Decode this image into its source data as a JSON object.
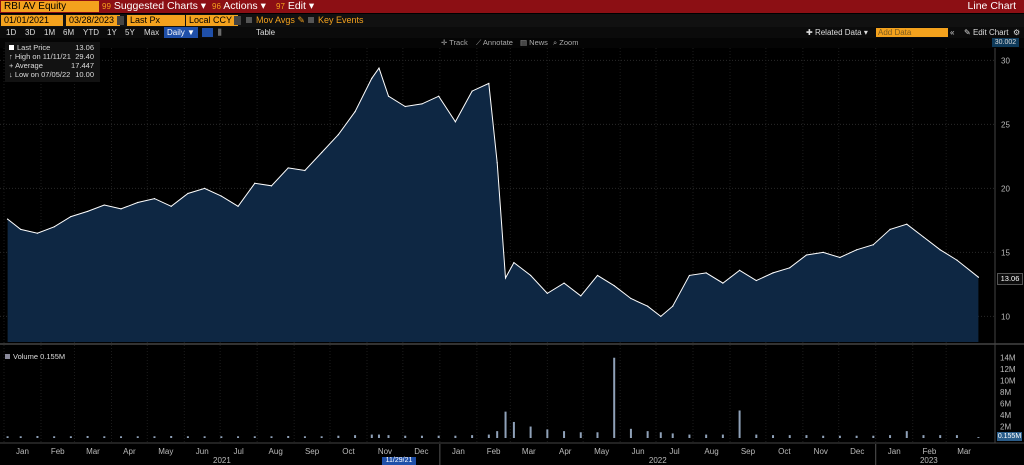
{
  "header": {
    "ticker": "RBI AV Equity",
    "suggested": "Suggested Charts",
    "suggested_num": "99",
    "actions": "Actions",
    "actions_num": "96",
    "edit": "Edit",
    "edit_num": "97",
    "title": "Line Chart"
  },
  "controls": {
    "start_date": "01/01/2021",
    "end_date": "03/28/2023",
    "field": "Last Px",
    "currency": "Local CCY",
    "mov_avgs": "Mov Avgs",
    "key_events": "Key Events",
    "periods": [
      "1D",
      "3D",
      "1M",
      "6M",
      "YTD",
      "1Y",
      "5Y",
      "Max"
    ],
    "frequency": "Daily",
    "table": "Table",
    "related": "Related Data",
    "add_data_placeholder": "Add Data",
    "edit_chart": "Edit Chart",
    "tools": [
      "Track",
      "Annotate",
      "News",
      "Zoom"
    ]
  },
  "legend": {
    "last_label": "Last Price",
    "last_value": "13.06",
    "high_label": "High on 11/11/21",
    "high_value": "29.40",
    "avg_label": "Average",
    "avg_value": "17.447",
    "low_label": "Low on 07/05/22",
    "low_value": "10.00"
  },
  "volume_label": "Volume",
  "volume_value": "0.155M",
  "cursor_date": "11/29/21",
  "top_value_tag": "30.002",
  "colors": {
    "accent": "#f4a21d",
    "bar": "#8c0f14",
    "area": "#0e2743",
    "line": "#ffffff"
  },
  "chart_data": {
    "type": "area",
    "ylim": [
      8,
      30.5
    ],
    "yticks": [
      10,
      15,
      20,
      25,
      30
    ],
    "last_value": 13.06,
    "x": [
      "2021-01-04",
      "2021-01-15",
      "2021-01-29",
      "2021-02-12",
      "2021-02-26",
      "2021-03-12",
      "2021-03-26",
      "2021-04-09",
      "2021-04-23",
      "2021-05-07",
      "2021-05-21",
      "2021-06-04",
      "2021-06-18",
      "2021-07-02",
      "2021-07-16",
      "2021-07-30",
      "2021-08-13",
      "2021-08-27",
      "2021-09-10",
      "2021-09-24",
      "2021-10-08",
      "2021-10-22",
      "2021-11-05",
      "2021-11-11",
      "2021-11-19",
      "2021-12-03",
      "2021-12-17",
      "2021-12-31",
      "2022-01-14",
      "2022-01-28",
      "2022-02-11",
      "2022-02-18",
      "2022-02-25",
      "2022-03-04",
      "2022-03-18",
      "2022-04-01",
      "2022-04-15",
      "2022-04-29",
      "2022-05-13",
      "2022-05-27",
      "2022-06-10",
      "2022-06-24",
      "2022-07-05",
      "2022-07-15",
      "2022-07-29",
      "2022-08-12",
      "2022-08-26",
      "2022-09-09",
      "2022-09-23",
      "2022-10-07",
      "2022-10-21",
      "2022-11-04",
      "2022-11-18",
      "2022-12-02",
      "2022-12-16",
      "2022-12-30",
      "2023-01-13",
      "2023-01-27",
      "2023-02-10",
      "2023-02-24",
      "2023-03-10",
      "2023-03-28"
    ],
    "values": [
      17.6,
      16.8,
      16.5,
      17.0,
      17.8,
      18.2,
      18.7,
      18.4,
      18.9,
      19.2,
      18.6,
      19.6,
      20.0,
      19.4,
      18.6,
      20.4,
      20.2,
      21.6,
      21.4,
      22.8,
      24.2,
      26.0,
      28.6,
      29.4,
      27.2,
      26.4,
      26.6,
      27.2,
      25.2,
      27.6,
      28.2,
      22.0,
      13.0,
      14.2,
      13.2,
      11.8,
      12.6,
      11.6,
      13.2,
      12.4,
      11.4,
      10.8,
      10.0,
      10.8,
      13.2,
      13.4,
      12.6,
      13.6,
      12.8,
      13.4,
      13.8,
      14.8,
      15.0,
      14.6,
      15.2,
      15.6,
      16.8,
      17.2,
      16.2,
      15.2,
      14.4,
      13.06
    ],
    "volume": {
      "ylim": [
        0,
        15
      ],
      "yticks_labels": [
        "2M",
        "4M",
        "6M",
        "8M",
        "10M",
        "12M",
        "14M"
      ],
      "yticks": [
        2,
        4,
        6,
        8,
        10,
        12,
        14
      ],
      "unit": "M",
      "values": [
        0.3,
        0.3,
        0.35,
        0.3,
        0.3,
        0.35,
        0.3,
        0.3,
        0.3,
        0.3,
        0.35,
        0.3,
        0.3,
        0.3,
        0.3,
        0.3,
        0.3,
        0.35,
        0.3,
        0.3,
        0.4,
        0.5,
        0.6,
        0.6,
        0.5,
        0.4,
        0.4,
        0.4,
        0.4,
        0.5,
        0.6,
        1.2,
        4.6,
        2.8,
        2.0,
        1.5,
        1.2,
        1.0,
        1.0,
        14.0,
        1.6,
        1.2,
        1.0,
        0.8,
        0.6,
        0.6,
        0.6,
        4.8,
        0.6,
        0.5,
        0.5,
        0.5,
        0.4,
        0.4,
        0.4,
        0.4,
        0.5,
        1.2,
        0.5,
        0.5,
        0.5,
        0.155
      ]
    },
    "x_month_labels": [
      "Jan",
      "Feb",
      "Mar",
      "Apr",
      "May",
      "Jun",
      "Jul",
      "Aug",
      "Sep",
      "Oct",
      "Nov",
      "Dec",
      "Jan",
      "Feb",
      "Mar",
      "Apr",
      "May",
      "Jun",
      "Jul",
      "Aug",
      "Sep",
      "Oct",
      "Nov",
      "Dec",
      "Jan",
      "Feb",
      "Mar"
    ],
    "x_year_labels": [
      "2021",
      "2022",
      "2023"
    ]
  }
}
